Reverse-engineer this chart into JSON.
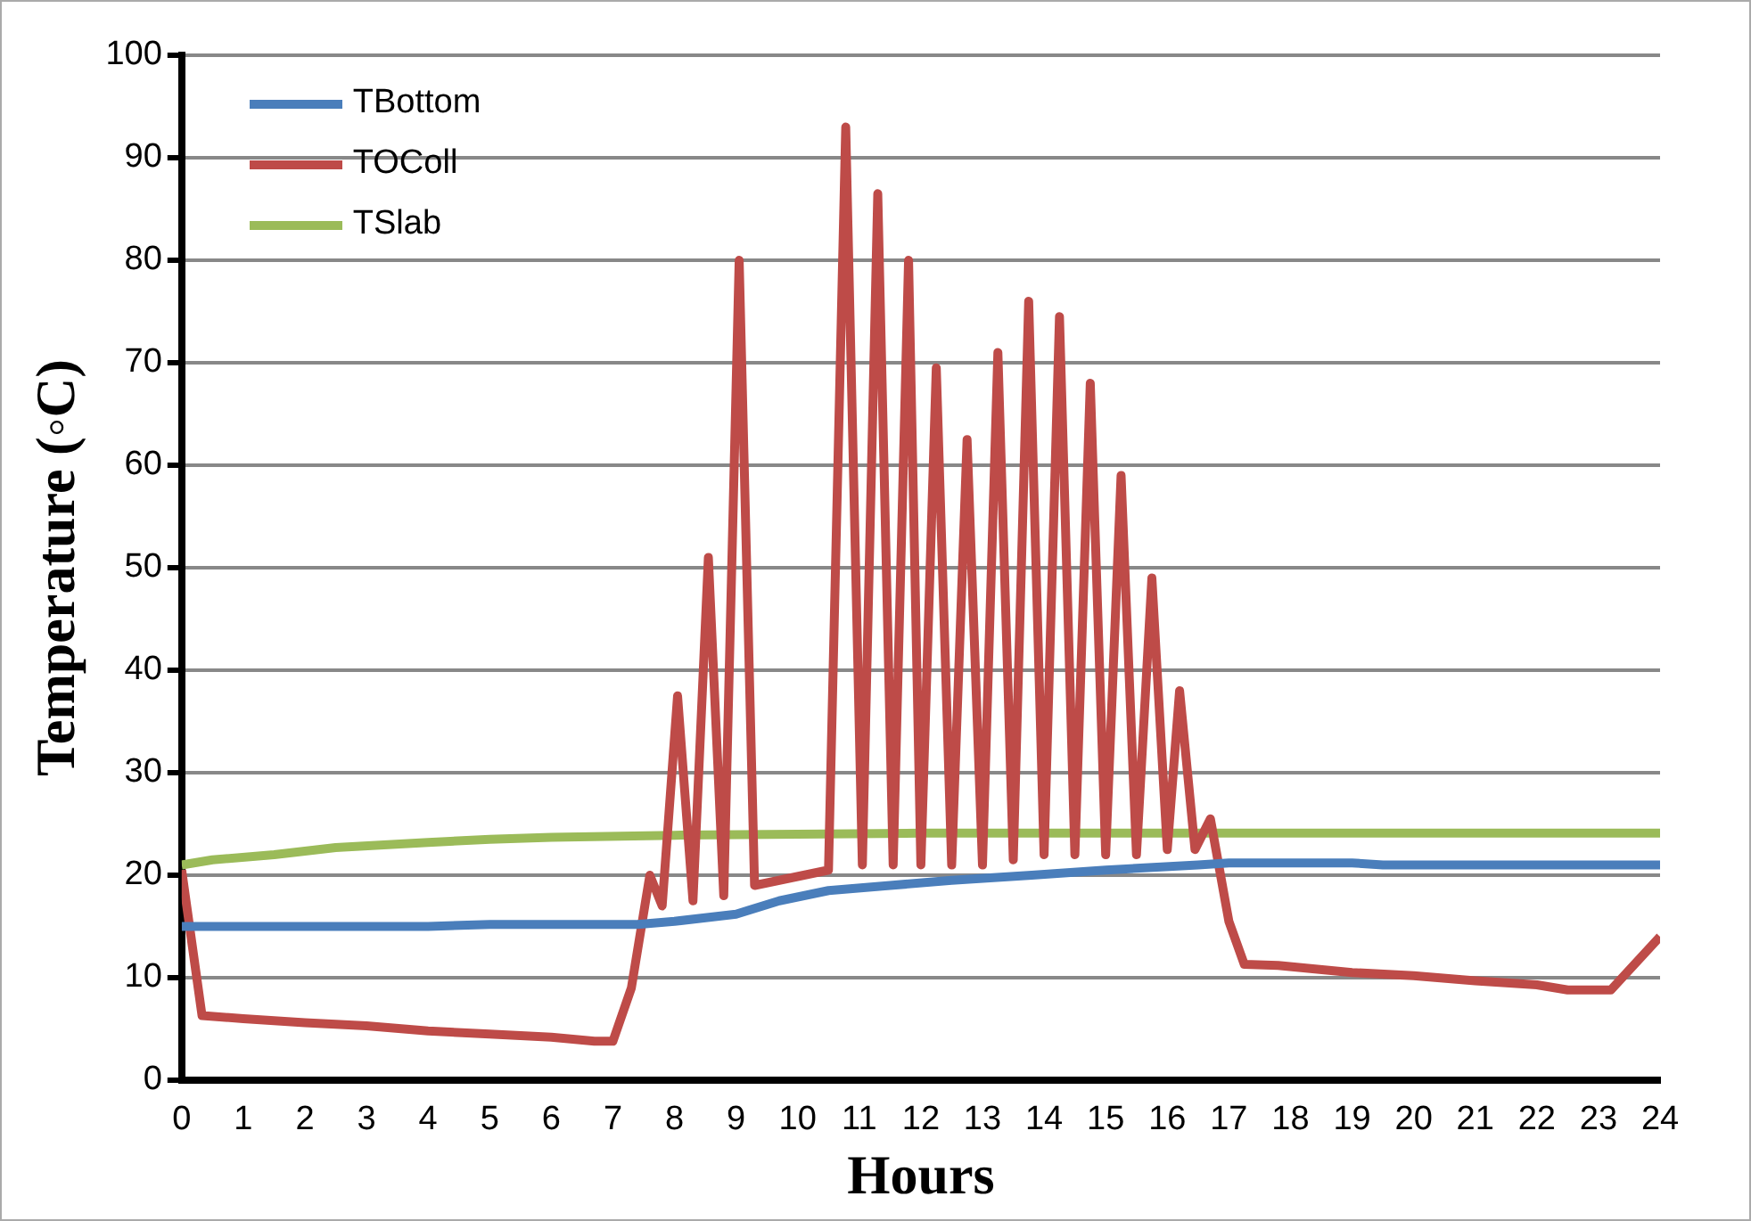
{
  "chart_data": {
    "type": "line",
    "xlabel": "Hours",
    "ylabel": "Temperature (◦C)",
    "xlim": [
      0,
      24
    ],
    "xticks": [
      0,
      1,
      2,
      3,
      4,
      5,
      6,
      7,
      8,
      9,
      10,
      11,
      12,
      13,
      14,
      15,
      16,
      17,
      18,
      19,
      20,
      21,
      22,
      23,
      24
    ],
    "ylim": [
      0,
      100
    ],
    "yticks": [
      0,
      10,
      20,
      30,
      40,
      50,
      60,
      70,
      80,
      90,
      100
    ],
    "grid": "y",
    "legend": "top left",
    "marker": "none",
    "line_style": "solid",
    "series": [
      {
        "name": "TBottom",
        "color": "#4a7ebb",
        "x": [
          0,
          2,
          4,
          5,
          7,
          7.4,
          8,
          9,
          9.7,
          10.5,
          11.5,
          12.5,
          13.8,
          15,
          16.5,
          17,
          19,
          19.5,
          24
        ],
        "values": [
          15,
          15,
          15,
          15.2,
          15.2,
          15.2,
          15.5,
          16.2,
          17.5,
          18.5,
          19,
          19.5,
          20,
          20.5,
          21,
          21.2,
          21.2,
          21,
          21
        ]
      },
      {
        "name": "TOColl",
        "color": "#be4b48",
        "x": [
          0,
          0.33,
          1,
          2,
          3,
          4,
          5,
          6,
          6.7,
          7,
          7.3,
          7.6,
          7.8,
          8.05,
          8.3,
          8.55,
          8.8,
          9.05,
          9.3,
          10.5,
          10.78,
          11.05,
          11.3,
          11.55,
          11.8,
          12,
          12.25,
          12.5,
          12.75,
          13,
          13.25,
          13.5,
          13.75,
          14,
          14.25,
          14.5,
          14.75,
          15,
          15.25,
          15.5,
          15.75,
          16,
          16.2,
          16.45,
          16.7,
          17,
          17.25,
          17.8,
          19,
          20,
          21,
          22,
          22.5,
          23.2,
          24
        ],
        "values": [
          20.5,
          6.3,
          6,
          5.6,
          5.3,
          4.8,
          4.5,
          4.2,
          3.8,
          3.8,
          9,
          20,
          17,
          37.5,
          17.5,
          51,
          18,
          80,
          19,
          20.5,
          93,
          21,
          86.5,
          21,
          80,
          21,
          69.5,
          21,
          62.5,
          21,
          71,
          21.5,
          76,
          22,
          74.5,
          22,
          68,
          22,
          59,
          22,
          49,
          22.5,
          38,
          22.5,
          25.5,
          15.5,
          11.3,
          11.2,
          10.5,
          10.2,
          9.7,
          9.3,
          8.8,
          8.8,
          14
        ]
      },
      {
        "name": "TSlab",
        "color": "#9bbb59",
        "x": [
          0,
          0.5,
          1.5,
          2.5,
          4,
          5,
          6,
          8,
          10,
          12,
          24
        ],
        "values": [
          21,
          21.5,
          22,
          22.7,
          23.2,
          23.5,
          23.7,
          23.9,
          24,
          24.1,
          24.1
        ]
      }
    ]
  }
}
